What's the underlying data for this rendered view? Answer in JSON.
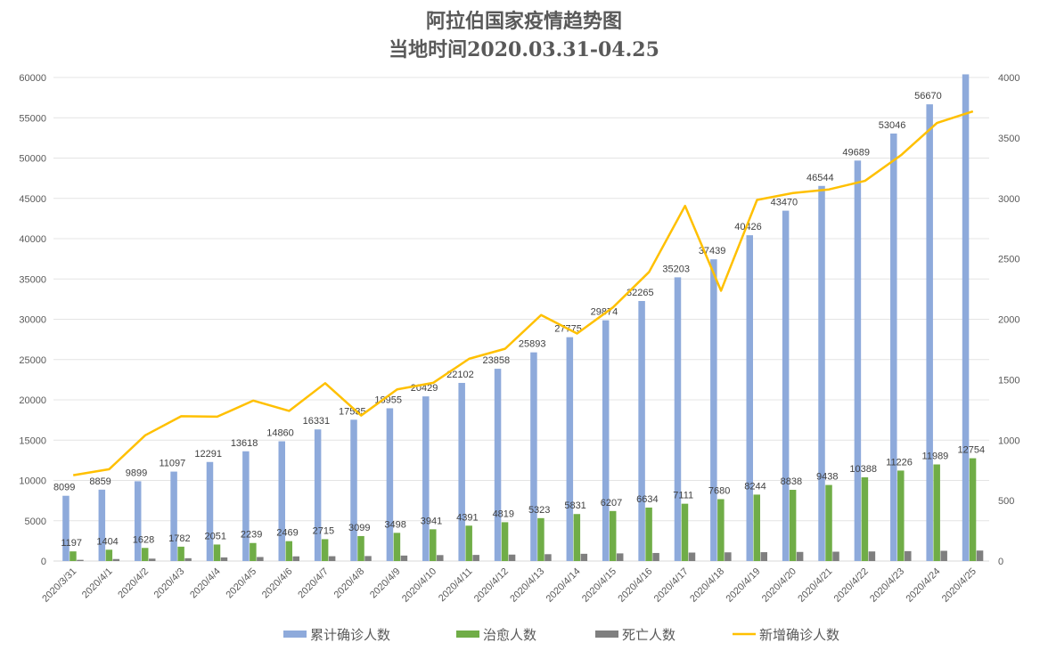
{
  "chart_data": {
    "type": "bar+line",
    "title": "阿拉伯国家疫情趋势图",
    "subtitle": "当地时间2020.03.31-04.25",
    "categories": [
      "2020/3/31",
      "2020/4/1",
      "2020/4/2",
      "2020/4/3",
      "2020/4/4",
      "2020/4/5",
      "2020/4/6",
      "2020/4/7",
      "2020/4/8",
      "2020/4/9",
      "2020/4/10",
      "2020/4/11",
      "2020/4/12",
      "2020/4/13",
      "2020/4/14",
      "2020/4/15",
      "2020/4/16",
      "2020/4/17",
      "2020/4/18",
      "2020/4/19",
      "2020/4/20",
      "2020/4/21",
      "2020/4/22",
      "2020/4/23",
      "2020/4/24",
      "2020/4/25"
    ],
    "series": [
      {
        "name": "累计确诊人数",
        "type": "bar",
        "axis": "left",
        "color": "#8eaadb",
        "labeled": true,
        "values": [
          8099,
          8859,
          9899,
          11097,
          12291,
          13618,
          14860,
          16331,
          17535,
          18955,
          20429,
          22102,
          23858,
          25893,
          27775,
          29874,
          32265,
          35203,
          37439,
          40426,
          43470,
          46544,
          49689,
          53046,
          56670,
          60390
        ],
        "label_hidden_last": true
      },
      {
        "name": "治愈人数",
        "type": "bar",
        "axis": "left",
        "color": "#70ad47",
        "labeled": true,
        "values": [
          1197,
          1404,
          1628,
          1782,
          2051,
          2239,
          2469,
          2715,
          3099,
          3498,
          3941,
          4391,
          4819,
          5323,
          5831,
          6207,
          6634,
          7111,
          7680,
          8244,
          8838,
          9438,
          10388,
          11226,
          11989,
          12754
        ]
      },
      {
        "name": "死亡人数",
        "type": "bar",
        "axis": "left",
        "color": "#7f7f7f",
        "labeled": false,
        "values": [
          150,
          250,
          300,
          350,
          450,
          500,
          580,
          600,
          620,
          680,
          740,
          760,
          800,
          850,
          900,
          950,
          1000,
          1050,
          1080,
          1100,
          1130,
          1160,
          1190,
          1230,
          1270,
          1300
        ]
      },
      {
        "name": "新增确诊人数",
        "type": "line",
        "axis": "right",
        "color": "#ffc000",
        "labeled": false,
        "values": [
          710,
          760,
          1040,
          1198,
          1194,
          1327,
          1242,
          1471,
          1204,
          1420,
          1474,
          1673,
          1756,
          2035,
          1882,
          2099,
          2391,
          2938,
          2236,
          2987,
          3044,
          3074,
          3145,
          3357,
          3624,
          3720
        ]
      }
    ],
    "yleft": {
      "min": 0,
      "max": 60000,
      "step": 5000,
      "ticks": [
        "0",
        "5000",
        "10000",
        "15000",
        "20000",
        "25000",
        "30000",
        "35000",
        "40000",
        "45000",
        "50000",
        "55000",
        "60000"
      ]
    },
    "yright": {
      "min": 0,
      "max": 4000,
      "step": 500,
      "ticks": [
        "0",
        "500",
        "1000",
        "1500",
        "2000",
        "2500",
        "3000",
        "3500",
        "4000"
      ]
    },
    "grid": true,
    "legend": "bottom"
  }
}
